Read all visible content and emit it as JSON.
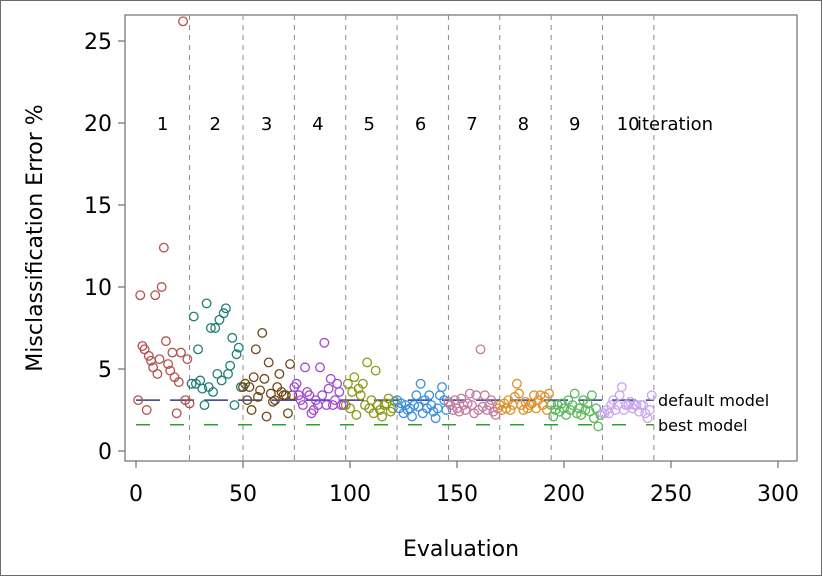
{
  "chart_data": {
    "type": "scatter",
    "title": "",
    "xlabel": "Evaluation",
    "ylabel": "Misclassification Error %",
    "xlim": [
      -5,
      310
    ],
    "ylim": [
      -0.5,
      26
    ],
    "xticks": [
      0,
      50,
      100,
      150,
      200,
      250,
      300
    ],
    "yticks": [
      0,
      5,
      10,
      15,
      20,
      25
    ],
    "x_tick_labels": [
      "0",
      "50",
      "100",
      "150",
      "200",
      "250",
      "300"
    ],
    "y_tick_labels": [
      "0",
      "5",
      "10",
      "15",
      "20",
      "25"
    ],
    "iteration_boundaries": [
      25,
      50,
      74,
      98,
      122,
      146,
      170,
      194,
      218,
      242
    ],
    "iteration_label_y": 20,
    "iteration_labels": [
      {
        "x": 12.5,
        "label": "1",
        "color": "#000000"
      },
      {
        "x": 37,
        "label": "2",
        "color": "#000000"
      },
      {
        "x": 61,
        "label": "3",
        "color": "#000000"
      },
      {
        "x": 85,
        "label": "4",
        "color": "#000000"
      },
      {
        "x": 109,
        "label": "5",
        "color": "#000000"
      },
      {
        "x": 133,
        "label": "6",
        "color": "#000000"
      },
      {
        "x": 157,
        "label": "7",
        "color": "#000000"
      },
      {
        "x": 181,
        "label": "8",
        "color": "#000000"
      },
      {
        "x": 205,
        "label": "9",
        "color": "#000000"
      },
      {
        "x": 230,
        "label": "10",
        "color": "#000000"
      }
    ],
    "iteration_axis_label": "iteration",
    "reference_lines": [
      {
        "name": "default model",
        "y": 3.1,
        "x_range": [
          0,
          242
        ],
        "color": "#2b3a8f",
        "dash": "24 10"
      },
      {
        "name": "best model",
        "y": 1.6,
        "x_range": [
          0,
          242
        ],
        "color": "#2ca02c",
        "dash": "14 20"
      }
    ],
    "series": [
      {
        "name": "iteration 1",
        "color": "#b5504b",
        "points": [
          [
            1,
            3.1
          ],
          [
            2,
            9.5
          ],
          [
            3,
            6.4
          ],
          [
            4,
            6.2
          ],
          [
            5,
            2.5
          ],
          [
            6,
            5.8
          ],
          [
            7,
            5.5
          ],
          [
            8,
            5.1
          ],
          [
            9,
            9.5
          ],
          [
            10,
            4.7
          ],
          [
            11,
            5.6
          ],
          [
            12,
            10
          ],
          [
            13,
            12.4
          ],
          [
            14,
            6.7
          ],
          [
            15,
            5.3
          ],
          [
            16,
            4.9
          ],
          [
            17,
            6
          ],
          [
            18,
            4.5
          ],
          [
            19,
            2.3
          ],
          [
            20,
            4.2
          ],
          [
            21,
            6
          ],
          [
            22,
            26.2
          ],
          [
            23,
            3.1
          ],
          [
            24,
            5.6
          ],
          [
            25,
            2.9
          ]
        ]
      },
      {
        "name": "iteration 2",
        "color": "#1f7f76",
        "points": [
          [
            26,
            4.1
          ],
          [
            27,
            8.2
          ],
          [
            28,
            4.1
          ],
          [
            29,
            6.2
          ],
          [
            30,
            4.3
          ],
          [
            31,
            3.8
          ],
          [
            32,
            2.8
          ],
          [
            33,
            9
          ],
          [
            34,
            3.9
          ],
          [
            35,
            7.5
          ],
          [
            36,
            3.6
          ],
          [
            37,
            7.5
          ],
          [
            38,
            4.7
          ],
          [
            39,
            8
          ],
          [
            40,
            4.3
          ],
          [
            41,
            8.4
          ],
          [
            42,
            8.7
          ],
          [
            43,
            4.7
          ],
          [
            44,
            5.2
          ],
          [
            45,
            6.9
          ],
          [
            46,
            2.8
          ],
          [
            47,
            5.9
          ],
          [
            48,
            6.3
          ],
          [
            49,
            3.9
          ]
        ]
      },
      {
        "name": "iteration 3",
        "color": "#6e4718",
        "points": [
          [
            50,
            3.9
          ],
          [
            51,
            4.1
          ],
          [
            52,
            3.1
          ],
          [
            53,
            3.9
          ],
          [
            54,
            2.5
          ],
          [
            55,
            4.5
          ],
          [
            56,
            6.2
          ],
          [
            57,
            3.3
          ],
          [
            58,
            3.7
          ],
          [
            59,
            7.2
          ],
          [
            60,
            4.4
          ],
          [
            61,
            2.1
          ],
          [
            62,
            5.4
          ],
          [
            63,
            3.5
          ],
          [
            64,
            3
          ],
          [
            65,
            3.1
          ],
          [
            66,
            3.9
          ],
          [
            67,
            4.7
          ],
          [
            68,
            3.6
          ],
          [
            69,
            3.4
          ],
          [
            70,
            3.4
          ],
          [
            71,
            2.3
          ],
          [
            72,
            5.3
          ],
          [
            73,
            3.4
          ]
        ]
      },
      {
        "name": "iteration 4",
        "color": "#a347d3",
        "points": [
          [
            74,
            3.9
          ],
          [
            75,
            4.1
          ],
          [
            76,
            3.4
          ],
          [
            77,
            3.1
          ],
          [
            78,
            2.8
          ],
          [
            79,
            5.1
          ],
          [
            80,
            3.6
          ],
          [
            81,
            3.4
          ],
          [
            82,
            2.3
          ],
          [
            83,
            2.5
          ],
          [
            84,
            3.1
          ],
          [
            85,
            2.8
          ],
          [
            86,
            5.1
          ],
          [
            87,
            3.4
          ],
          [
            88,
            6.6
          ],
          [
            89,
            2.8
          ],
          [
            90,
            3.8
          ],
          [
            91,
            4.4
          ],
          [
            92,
            2.8
          ],
          [
            93,
            3.1
          ],
          [
            94,
            4.1
          ],
          [
            95,
            3.6
          ],
          [
            96,
            2.8
          ],
          [
            97,
            2.8
          ]
        ]
      },
      {
        "name": "iteration 5",
        "color": "#8c9a18",
        "points": [
          [
            98,
            2.8
          ],
          [
            99,
            4.1
          ],
          [
            100,
            2.6
          ],
          [
            101,
            3.6
          ],
          [
            102,
            4.5
          ],
          [
            103,
            2.2
          ],
          [
            104,
            3.8
          ],
          [
            105,
            3.4
          ],
          [
            106,
            4.1
          ],
          [
            107,
            2.8
          ],
          [
            108,
            5.4
          ],
          [
            109,
            2.6
          ],
          [
            110,
            3.1
          ],
          [
            111,
            2.3
          ],
          [
            112,
            4.9
          ],
          [
            113,
            2.8
          ],
          [
            114,
            2.5
          ],
          [
            115,
            2.1
          ],
          [
            116,
            2.8
          ],
          [
            117,
            2.9
          ],
          [
            118,
            3.2
          ],
          [
            119,
            2.4
          ],
          [
            120,
            2.6
          ],
          [
            121,
            3
          ]
        ]
      },
      {
        "name": "iteration 6",
        "color": "#3a8fe0",
        "points": [
          [
            122,
            3.1
          ],
          [
            123,
            2.6
          ],
          [
            124,
            2.9
          ],
          [
            125,
            2.3
          ],
          [
            126,
            2.8
          ],
          [
            127,
            2.5
          ],
          [
            128,
            2.6
          ],
          [
            129,
            2.1
          ],
          [
            130,
            2.8
          ],
          [
            131,
            3.4
          ],
          [
            132,
            2.7
          ],
          [
            133,
            4.1
          ],
          [
            134,
            2.3
          ],
          [
            135,
            3.1
          ],
          [
            136,
            2.6
          ],
          [
            137,
            3.4
          ],
          [
            138,
            2.8
          ],
          [
            139,
            2.4
          ],
          [
            140,
            2
          ],
          [
            141,
            2.6
          ],
          [
            142,
            3.4
          ],
          [
            143,
            3.9
          ],
          [
            144,
            3.1
          ],
          [
            145,
            2.5
          ]
        ]
      },
      {
        "name": "iteration 7",
        "color": "#c47a9b",
        "points": [
          [
            146,
            3
          ],
          [
            147,
            2.8
          ],
          [
            148,
            2.5
          ],
          [
            149,
            3.1
          ],
          [
            150,
            2.6
          ],
          [
            151,
            2.4
          ],
          [
            152,
            3.2
          ],
          [
            153,
            2.8
          ],
          [
            154,
            2.5
          ],
          [
            155,
            2.9
          ],
          [
            156,
            3.5
          ],
          [
            157,
            2.8
          ],
          [
            158,
            2.3
          ],
          [
            159,
            3.4
          ],
          [
            160,
            2.5
          ],
          [
            161,
            6.2
          ],
          [
            162,
            2.7
          ],
          [
            163,
            3.4
          ],
          [
            164,
            2.5
          ],
          [
            165,
            2.8
          ],
          [
            166,
            3.1
          ],
          [
            167,
            2.4
          ],
          [
            168,
            2.2
          ],
          [
            169,
            2.6
          ]
        ]
      },
      {
        "name": "iteration 8",
        "color": "#e0902a",
        "points": [
          [
            170,
            2.8
          ],
          [
            171,
            2.5
          ],
          [
            172,
            2.9
          ],
          [
            173,
            2.6
          ],
          [
            174,
            3.1
          ],
          [
            175,
            2.5
          ],
          [
            176,
            2.8
          ],
          [
            177,
            3.3
          ],
          [
            178,
            4.1
          ],
          [
            179,
            3.5
          ],
          [
            180,
            2.8
          ],
          [
            181,
            2.5
          ],
          [
            182,
            3
          ],
          [
            183,
            2.6
          ],
          [
            184,
            2.8
          ],
          [
            185,
            2.9
          ],
          [
            186,
            3.4
          ],
          [
            187,
            2.6
          ],
          [
            188,
            3.1
          ],
          [
            189,
            3.4
          ],
          [
            190,
            2.8
          ],
          [
            191,
            3.3
          ],
          [
            192,
            2.5
          ],
          [
            193,
            3.5
          ]
        ]
      },
      {
        "name": "iteration 9",
        "color": "#5cb85c",
        "points": [
          [
            194,
            2.8
          ],
          [
            195,
            2.1
          ],
          [
            196,
            2.5
          ],
          [
            197,
            2.8
          ],
          [
            198,
            2.4
          ],
          [
            199,
            2.9
          ],
          [
            200,
            2.6
          ],
          [
            201,
            2.2
          ],
          [
            202,
            3.1
          ],
          [
            203,
            2.5
          ],
          [
            204,
            2.8
          ],
          [
            205,
            3.5
          ],
          [
            206,
            2.3
          ],
          [
            207,
            2.6
          ],
          [
            208,
            2.2
          ],
          [
            209,
            3.1
          ],
          [
            210,
            2.5
          ],
          [
            211,
            2.9
          ],
          [
            212,
            2.4
          ],
          [
            213,
            3.4
          ],
          [
            214,
            2
          ],
          [
            215,
            2.6
          ],
          [
            216,
            1.5
          ],
          [
            217,
            2.2
          ]
        ]
      },
      {
        "name": "iteration 10",
        "color": "#c9a5f0",
        "points": [
          [
            218,
            2.3
          ],
          [
            219,
            2.3
          ],
          [
            220,
            2.5
          ],
          [
            221,
            2.3
          ],
          [
            222,
            2.8
          ],
          [
            223,
            3.1
          ],
          [
            224,
            2.5
          ],
          [
            225,
            2.8
          ],
          [
            226,
            3.4
          ],
          [
            227,
            3.9
          ],
          [
            228,
            2.5
          ],
          [
            229,
            2.8
          ],
          [
            230,
            2.8
          ],
          [
            231,
            3
          ],
          [
            232,
            2.6
          ],
          [
            233,
            2.8
          ],
          [
            234,
            2.8
          ],
          [
            235,
            2.4
          ],
          [
            236,
            2.8
          ],
          [
            237,
            2.8
          ],
          [
            238,
            2.3
          ],
          [
            239,
            2
          ],
          [
            240,
            2.5
          ],
          [
            241,
            3.4
          ]
        ]
      }
    ]
  }
}
